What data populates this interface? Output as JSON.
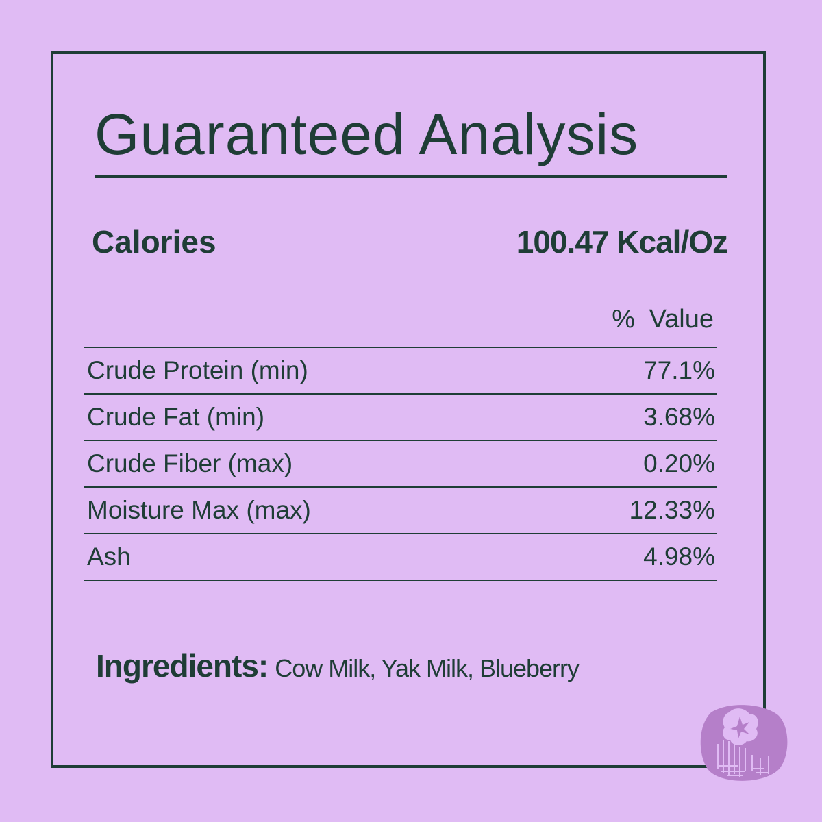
{
  "title": "Guaranteed Analysis",
  "calories": {
    "label": "Calories",
    "value": "100.47 Kcal/Oz"
  },
  "table_header": "% Value",
  "rows": [
    {
      "label": "Crude Protein (min)",
      "value": "77.1%"
    },
    {
      "label": "Crude Fat (min)",
      "value": "3.68%"
    },
    {
      "label": "Crude Fiber (max)",
      "value": "0.20%"
    },
    {
      "label": "Moisture Max (max)",
      "value": "12.33%"
    },
    {
      "label": "Ash",
      "value": "4.98%"
    }
  ],
  "ingredients": {
    "label": "Ingredients:",
    "text": "Cow Milk, Yak Milk, Blueberry"
  },
  "icon": "blueberry-icon",
  "colors": {
    "background": "#e0bbf4",
    "text": "#1f3d36",
    "accent": "#b57fc9"
  }
}
